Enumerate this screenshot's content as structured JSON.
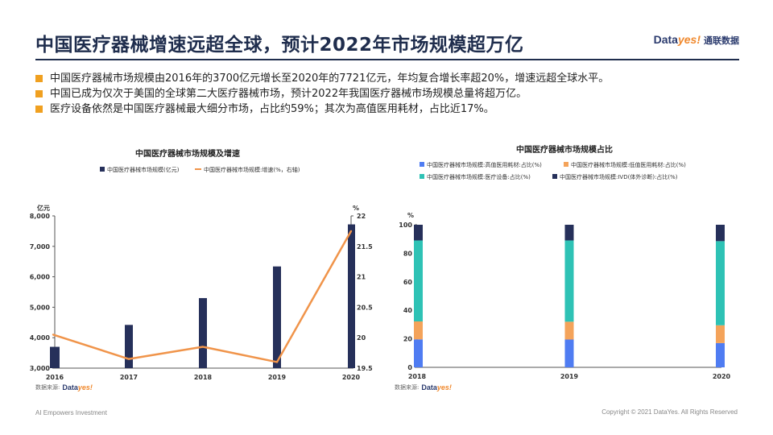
{
  "header": {
    "title": "中国医疗器械增速远超全球，预计2022年市场规模超万亿",
    "brand_main": "Data",
    "brand_accent": "yes!",
    "brand_cn": "通联数据"
  },
  "bullets": [
    "中国医疗器械市场规模由2016年的3700亿元增长至2020年的7721亿元，年均复合增长率超20%，增速远超全球水平。",
    "中国已成为仅次于美国的全球第二大医疗器械市场，预计2022年我国医疗器械市场规模总量将超万亿。",
    "医疗设备依然是中国医疗器械最大细分市场，占比约59%；其次为高值医用耗材，占比近17%。"
  ],
  "colors": {
    "navy": "#26305a",
    "orange": "#f0944a",
    "blue": "#4f7cf2",
    "light_orange": "#f4a35a",
    "teal": "#2ec2b5",
    "bullet": "#f0a020"
  },
  "chart_data": [
    {
      "type": "bar",
      "title": "中国医疗器械市场规模及增速",
      "categories": [
        "2016",
        "2017",
        "2018",
        "2019",
        "2020"
      ],
      "series": [
        {
          "name": "中国医疗器械市场规模(亿元)",
          "kind": "bar",
          "axis": "left",
          "values": [
            3700,
            4420,
            5300,
            6340,
            7721
          ]
        },
        {
          "name": "中国医疗器械市场规模:增速(%，右轴)",
          "kind": "line",
          "axis": "right",
          "values": [
            20.05,
            19.65,
            19.85,
            19.6,
            21.75
          ]
        }
      ],
      "ylabel_left": "亿元",
      "ylabel_right": "%",
      "ylim_left": [
        3000,
        8000
      ],
      "yticks_left": [
        "3,000",
        "4,000",
        "5,000",
        "6,000",
        "7,000",
        "8,000"
      ],
      "ylim_right": [
        19.5,
        22
      ],
      "yticks_right": [
        "19.5",
        "20",
        "20.5",
        "21",
        "21.5",
        "22"
      ],
      "source_label": "数据来源:"
    },
    {
      "type": "bar",
      "stacked": true,
      "title": "中国医疗器械市场规模占比",
      "categories": [
        "2018",
        "2019",
        "2020"
      ],
      "series": [
        {
          "name": "中国医疗器械市场规模:高值医用耗材:占比(%)",
          "values": [
            19.6,
            19.5,
            17.0
          ]
        },
        {
          "name": "中国医疗器械市场规模:低值医用耗材:占比(%)",
          "values": [
            12.6,
            12.5,
            12.5
          ]
        },
        {
          "name": "中国医疗器械市场规模:医疗设备:占比(%)",
          "values": [
            56.8,
            57.0,
            59.0
          ]
        },
        {
          "name": "中国医疗器械市场规模:IVD(体外诊断):占比(%)",
          "values": [
            11.0,
            11.0,
            11.5
          ]
        }
      ],
      "ylabel": "%",
      "ylim": [
        0,
        100
      ],
      "yticks": [
        "0",
        "20",
        "40",
        "60",
        "80",
        "100"
      ],
      "source_label": "数据来源:"
    }
  ],
  "footer": {
    "left": "AI Empowers Investment",
    "right": "Copyright © 2021 DataYes. All Rights Reserved"
  }
}
